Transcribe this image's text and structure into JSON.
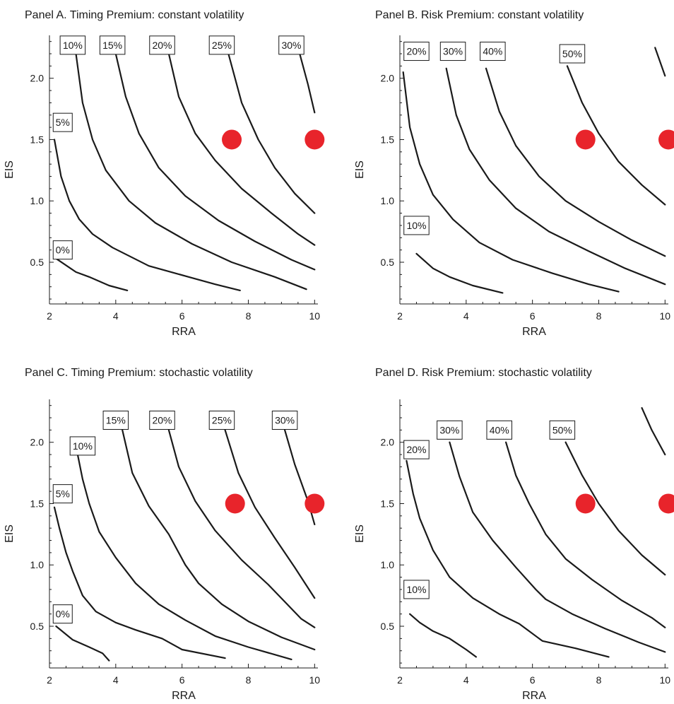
{
  "chart_data": [
    {
      "type": "line",
      "title": "Panel A. Timing Premium: constant volatility",
      "xlabel": "RRA",
      "ylabel": "EIS",
      "xlim": [
        2,
        10.1
      ],
      "ylim": [
        0.16,
        2.35
      ],
      "xticks": [
        "2",
        "4",
        "6",
        "8",
        "10"
      ],
      "yticks": [
        "0.5",
        "1.0",
        "1.5",
        "2.0"
      ],
      "grid": false,
      "series": [
        {
          "name": "0%",
          "x": [
            2.2,
            2.8,
            3.2,
            3.8,
            4.35
          ],
          "y": [
            0.53,
            0.42,
            0.38,
            0.31,
            0.27
          ]
        },
        {
          "name": "5%",
          "x": [
            2.15,
            2.35,
            2.6,
            2.9,
            3.3,
            3.9,
            5.0,
            6.2,
            7.0,
            7.75
          ],
          "y": [
            1.5,
            1.2,
            1.0,
            0.85,
            0.73,
            0.62,
            0.47,
            0.38,
            0.32,
            0.27
          ]
        },
        {
          "name": "10%",
          "x": [
            2.8,
            3.0,
            3.3,
            3.7,
            4.4,
            5.2,
            6.3,
            7.5,
            8.8,
            9.75
          ],
          "y": [
            2.2,
            1.8,
            1.5,
            1.25,
            1.0,
            0.82,
            0.65,
            0.5,
            0.38,
            0.28
          ]
        },
        {
          "name": "15%",
          "x": [
            4.0,
            4.3,
            4.7,
            5.3,
            6.1,
            7.1,
            8.2,
            9.3,
            10.0
          ],
          "y": [
            2.2,
            1.85,
            1.55,
            1.27,
            1.04,
            0.84,
            0.67,
            0.52,
            0.44
          ]
        },
        {
          "name": "20%",
          "x": [
            5.6,
            5.9,
            6.4,
            7.0,
            7.8,
            8.7,
            9.5,
            10.0
          ],
          "y": [
            2.2,
            1.85,
            1.55,
            1.33,
            1.1,
            0.9,
            0.73,
            0.64
          ]
        },
        {
          "name": "25%",
          "x": [
            7.4,
            7.8,
            8.3,
            8.8,
            9.4,
            10.0
          ],
          "y": [
            2.2,
            1.8,
            1.5,
            1.27,
            1.06,
            0.9
          ]
        },
        {
          "name": "30%",
          "x": [
            9.55,
            9.8,
            10.0
          ],
          "y": [
            2.2,
            1.95,
            1.72
          ]
        }
      ],
      "markers": {
        "x": [
          7.5,
          10.0
        ],
        "y": [
          1.5,
          1.5
        ],
        "color": "#e8242b"
      },
      "curve_labels": [
        {
          "text": "0%",
          "x": 2.4,
          "y": 0.6
        },
        {
          "text": "5%",
          "x": 2.4,
          "y": 1.64
        },
        {
          "text": "10%",
          "x": 2.7,
          "y": 2.27
        },
        {
          "text": "15%",
          "x": 3.9,
          "y": 2.27
        },
        {
          "text": "20%",
          "x": 5.4,
          "y": 2.27
        },
        {
          "text": "25%",
          "x": 7.2,
          "y": 2.27
        },
        {
          "text": "30%",
          "x": 9.3,
          "y": 2.27
        }
      ]
    },
    {
      "type": "line",
      "title": "Panel B. Risk Premium: constant volatility",
      "xlabel": "RRA",
      "ylabel": "EIS",
      "xlim": [
        2,
        10.1
      ],
      "ylim": [
        0.16,
        2.35
      ],
      "xticks": [
        "2",
        "4",
        "6",
        "8",
        "10"
      ],
      "yticks": [
        "0.5",
        "1.0",
        "1.5",
        "2.0"
      ],
      "grid": false,
      "series": [
        {
          "name": "10%",
          "x": [
            2.5,
            3.0,
            3.5,
            4.2,
            5.1
          ],
          "y": [
            0.57,
            0.45,
            0.38,
            0.31,
            0.25
          ]
        },
        {
          "name": "20%",
          "x": [
            2.1,
            2.3,
            2.6,
            3.0,
            3.6,
            4.4,
            5.4,
            6.6,
            7.7,
            8.6
          ],
          "y": [
            2.05,
            1.6,
            1.3,
            1.05,
            0.85,
            0.66,
            0.52,
            0.41,
            0.32,
            0.26
          ]
        },
        {
          "name": "30%",
          "x": [
            3.4,
            3.7,
            4.1,
            4.7,
            5.5,
            6.5,
            7.7,
            8.8,
            10.0
          ],
          "y": [
            2.08,
            1.7,
            1.42,
            1.17,
            0.94,
            0.75,
            0.59,
            0.45,
            0.32
          ]
        },
        {
          "name": "40%",
          "x": [
            4.6,
            5.0,
            5.5,
            6.2,
            7.0,
            8.0,
            9.0,
            10.0
          ],
          "y": [
            2.08,
            1.73,
            1.45,
            1.2,
            1.0,
            0.83,
            0.68,
            0.55
          ]
        },
        {
          "name": "50%",
          "x": [
            7.05,
            7.5,
            8.0,
            8.6,
            9.3,
            10.0
          ],
          "y": [
            2.1,
            1.8,
            1.55,
            1.32,
            1.13,
            0.97
          ]
        },
        {
          "name": "",
          "x": [
            9.7,
            10.0
          ],
          "y": [
            2.25,
            2.02
          ]
        }
      ],
      "markers": {
        "x": [
          7.6,
          10.1
        ],
        "y": [
          1.5,
          1.5
        ],
        "color": "#e8242b"
      },
      "curve_labels": [
        {
          "text": "10%",
          "x": 2.5,
          "y": 0.8
        },
        {
          "text": "20%",
          "x": 2.5,
          "y": 2.22
        },
        {
          "text": "30%",
          "x": 3.6,
          "y": 2.22
        },
        {
          "text": "40%",
          "x": 4.8,
          "y": 2.22
        },
        {
          "text": "50%",
          "x": 7.2,
          "y": 2.2
        }
      ]
    },
    {
      "type": "line",
      "title": "Panel C. Timing Premium: stochastic volatility",
      "xlabel": "RRA",
      "ylabel": "EIS",
      "xlim": [
        2,
        10.1
      ],
      "ylim": [
        0.16,
        2.35
      ],
      "xticks": [
        "2",
        "4",
        "6",
        "8",
        "10"
      ],
      "yticks": [
        "0.5",
        "1.0",
        "1.5",
        "2.0"
      ],
      "grid": false,
      "series": [
        {
          "name": "0%",
          "x": [
            2.2,
            2.7,
            3.2,
            3.6,
            3.8
          ],
          "y": [
            0.5,
            0.39,
            0.33,
            0.28,
            0.22
          ]
        },
        {
          "name": "5%",
          "x": [
            2.15,
            2.3,
            2.5,
            2.7,
            3.0,
            3.4,
            4.0,
            4.6,
            5.4,
            6.0,
            7.3
          ],
          "y": [
            1.47,
            1.3,
            1.1,
            0.95,
            0.75,
            0.62,
            0.53,
            0.47,
            0.4,
            0.31,
            0.24
          ]
        },
        {
          "name": "10%",
          "x": [
            2.85,
            3.0,
            3.2,
            3.5,
            4.0,
            4.6,
            5.3,
            6.1,
            7.0,
            8.0,
            9.3
          ],
          "y": [
            1.9,
            1.7,
            1.5,
            1.27,
            1.06,
            0.85,
            0.68,
            0.55,
            0.42,
            0.33,
            0.23
          ]
        },
        {
          "name": "15%",
          "x": [
            4.2,
            4.5,
            5.0,
            5.6,
            6.1,
            6.5,
            7.2,
            8.0,
            9.0,
            10.0
          ],
          "y": [
            2.1,
            1.75,
            1.48,
            1.25,
            1.0,
            0.85,
            0.68,
            0.54,
            0.41,
            0.31
          ]
        },
        {
          "name": "20%",
          "x": [
            5.6,
            5.9,
            6.4,
            7.0,
            7.8,
            8.6,
            9.6,
            10.0
          ],
          "y": [
            2.1,
            1.8,
            1.52,
            1.28,
            1.04,
            0.84,
            0.56,
            0.49
          ]
        },
        {
          "name": "25%",
          "x": [
            7.3,
            7.7,
            8.2,
            8.8,
            9.4,
            10.0
          ],
          "y": [
            2.1,
            1.75,
            1.47,
            1.22,
            0.98,
            0.73
          ]
        },
        {
          "name": "30%",
          "x": [
            9.1,
            9.4,
            9.8,
            10.0
          ],
          "y": [
            2.1,
            1.82,
            1.52,
            1.33
          ]
        }
      ],
      "markers": {
        "x": [
          7.6,
          10.0
        ],
        "y": [
          1.5,
          1.5
        ],
        "color": "#e8242b"
      },
      "curve_labels": [
        {
          "text": "0%",
          "x": 2.4,
          "y": 0.6
        },
        {
          "text": "5%",
          "x": 2.4,
          "y": 1.58
        },
        {
          "text": "10%",
          "x": 3.0,
          "y": 1.97
        },
        {
          "text": "15%",
          "x": 4.0,
          "y": 2.18
        },
        {
          "text": "20%",
          "x": 5.4,
          "y": 2.18
        },
        {
          "text": "25%",
          "x": 7.2,
          "y": 2.18
        },
        {
          "text": "30%",
          "x": 9.1,
          "y": 2.18
        }
      ]
    },
    {
      "type": "line",
      "title": "Panel D. Risk Premium: stochastic volatility",
      "xlabel": "RRA",
      "ylabel": "EIS",
      "xlim": [
        2,
        10.1
      ],
      "ylim": [
        0.16,
        2.35
      ],
      "xticks": [
        "2",
        "4",
        "6",
        "8",
        "10"
      ],
      "yticks": [
        "0.5",
        "1.0",
        "1.5",
        "2.0"
      ],
      "grid": false,
      "series": [
        {
          "name": "10%",
          "x": [
            2.3,
            2.6,
            3.0,
            3.5,
            4.0,
            4.3
          ],
          "y": [
            0.6,
            0.53,
            0.46,
            0.4,
            0.31,
            0.25
          ]
        },
        {
          "name": "20%",
          "x": [
            2.2,
            2.4,
            2.6,
            3.0,
            3.5,
            4.2,
            5.0,
            5.6,
            6.3,
            7.3,
            8.3
          ],
          "y": [
            1.85,
            1.58,
            1.38,
            1.12,
            0.9,
            0.73,
            0.6,
            0.52,
            0.38,
            0.32,
            0.25
          ]
        },
        {
          "name": "30%",
          "x": [
            3.5,
            3.8,
            4.2,
            4.8,
            5.5,
            6.1,
            6.4,
            7.2,
            8.2,
            9.2,
            10.0
          ],
          "y": [
            2.0,
            1.72,
            1.43,
            1.2,
            0.98,
            0.8,
            0.72,
            0.6,
            0.48,
            0.37,
            0.29
          ]
        },
        {
          "name": "40%",
          "x": [
            5.2,
            5.5,
            5.9,
            6.4,
            7.0,
            7.8,
            8.7,
            9.6,
            10.0
          ],
          "y": [
            2.0,
            1.73,
            1.5,
            1.25,
            1.05,
            0.88,
            0.71,
            0.57,
            0.49
          ]
        },
        {
          "name": "50%",
          "x": [
            7.0,
            7.5,
            8.0,
            8.6,
            9.3,
            10.0
          ],
          "y": [
            2.0,
            1.73,
            1.5,
            1.28,
            1.08,
            0.92
          ]
        },
        {
          "name": "",
          "x": [
            9.3,
            9.6,
            10.0
          ],
          "y": [
            2.28,
            2.1,
            1.9
          ]
        }
      ],
      "markers": {
        "x": [
          7.6,
          10.1
        ],
        "y": [
          1.5,
          1.5
        ],
        "color": "#e8242b"
      },
      "curve_labels": [
        {
          "text": "10%",
          "x": 2.5,
          "y": 0.8
        },
        {
          "text": "20%",
          "x": 2.5,
          "y": 1.94
        },
        {
          "text": "30%",
          "x": 3.5,
          "y": 2.1
        },
        {
          "text": "40%",
          "x": 5.0,
          "y": 2.1
        },
        {
          "text": "50%",
          "x": 6.9,
          "y": 2.1
        }
      ]
    }
  ]
}
